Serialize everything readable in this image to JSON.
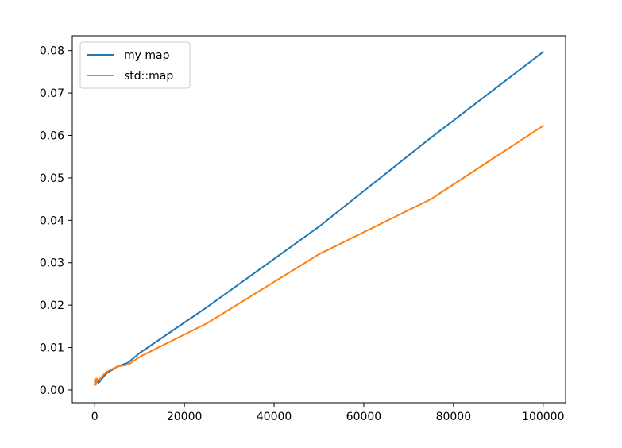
{
  "chart_data": {
    "type": "line",
    "title": "",
    "xlabel": "",
    "ylabel": "",
    "xlim": [
      -5000,
      105000
    ],
    "ylim": [
      -0.003,
      0.0835
    ],
    "xticks": [
      0,
      20000,
      40000,
      60000,
      80000,
      100000
    ],
    "xtick_labels": [
      "0",
      "20000",
      "40000",
      "60000",
      "80000",
      "100000"
    ],
    "yticks": [
      0.0,
      0.01,
      0.02,
      0.03,
      0.04,
      0.05,
      0.06,
      0.07,
      0.08
    ],
    "ytick_labels": [
      "0.00",
      "0.01",
      "0.02",
      "0.03",
      "0.04",
      "0.05",
      "0.06",
      "0.07",
      "0.08"
    ],
    "grid": false,
    "legend": "top-left",
    "series": [
      {
        "name": "my map",
        "color": "#1f77b4",
        "x": [
          10,
          100,
          250,
          500,
          750,
          1000,
          2500,
          5000,
          7500,
          10000,
          25000,
          50000,
          75000,
          100000
        ],
        "y": [
          0.0022,
          0.0015,
          0.0022,
          0.0026,
          0.0017,
          0.0018,
          0.0038,
          0.0055,
          0.0065,
          0.0087,
          0.0195,
          0.0385,
          0.0595,
          0.0797
        ]
      },
      {
        "name": "std::map",
        "color": "#ff7f0e",
        "x": [
          10,
          100,
          250,
          500,
          750,
          1000,
          2500,
          5000,
          7500,
          10000,
          25000,
          50000,
          75000,
          100000
        ],
        "y": [
          0.0012,
          0.0027,
          0.0012,
          0.0027,
          0.0022,
          0.0025,
          0.0042,
          0.0055,
          0.006,
          0.0078,
          0.0157,
          0.032,
          0.045,
          0.0623
        ]
      }
    ]
  }
}
